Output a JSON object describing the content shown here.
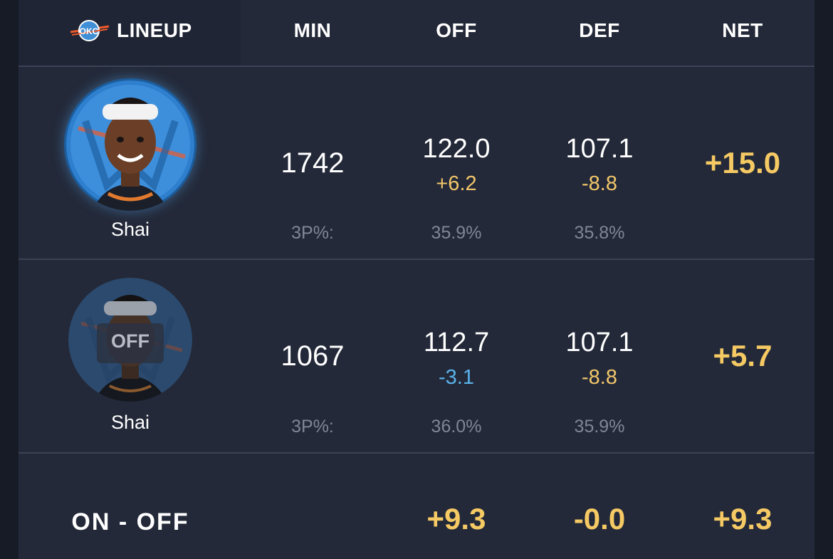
{
  "header": {
    "logo_text": "OKC",
    "lineup": "LINEUP",
    "min": "MIN",
    "off": "OFF",
    "def": "DEF",
    "net": "NET"
  },
  "rows": [
    {
      "player_name": "Shai",
      "status": "on",
      "min": "1742",
      "off": "122.0",
      "off_delta": "+6.2",
      "def": "107.1",
      "def_delta": "-8.8",
      "net": "+15.0",
      "three_label": "3P%:",
      "off_3p": "35.9%",
      "def_3p": "35.8%"
    },
    {
      "player_name": "Shai",
      "status": "off",
      "off_badge": "OFF",
      "min": "1067",
      "off": "112.7",
      "off_delta": "-3.1",
      "def": "107.1",
      "def_delta": "-8.8",
      "net": "+5.7",
      "three_label": "3P%:",
      "off_3p": "36.0%",
      "def_3p": "35.9%"
    }
  ],
  "summary": {
    "label": "ON - OFF",
    "off": "+9.3",
    "def": "-0.0",
    "net": "+9.3"
  },
  "colors": {
    "accent_gold": "#f2c66a",
    "delta_negative_blue": "#5ab3ea",
    "thunder_blue": "#3f8fd6",
    "thunder_orange": "#ef5a2b"
  }
}
